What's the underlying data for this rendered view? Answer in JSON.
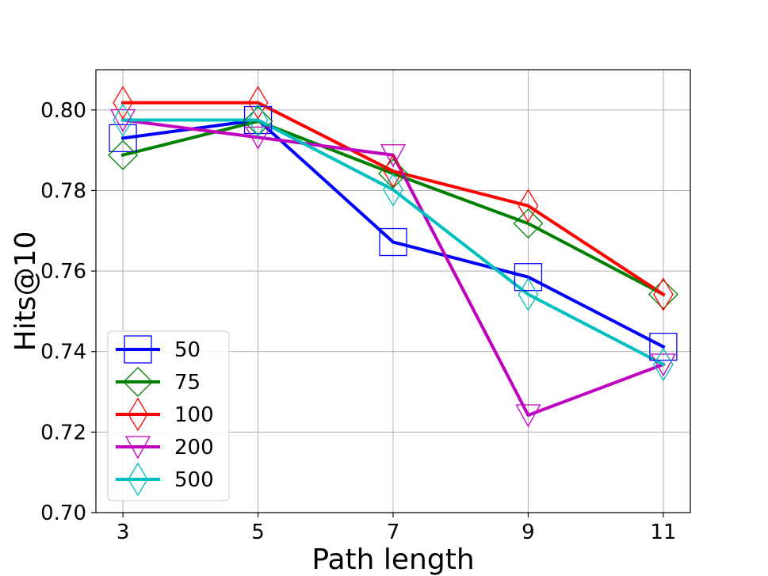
{
  "chart_data": {
    "type": "line",
    "title": "",
    "xlabel": "Path length",
    "ylabel": "Hits@10",
    "x": [
      3,
      5,
      7,
      9,
      11
    ],
    "x_ticks": [
      "3",
      "5",
      "7",
      "9",
      "11"
    ],
    "y_ticks": [
      "0.70",
      "0.72",
      "0.74",
      "0.76",
      "0.78",
      "0.80"
    ],
    "xlim": [
      2.6,
      11.4
    ],
    "ylim": [
      0.7,
      0.81
    ],
    "grid": true,
    "legend_position": "lower-left",
    "series": [
      {
        "name": "50",
        "color": "#0000ff",
        "marker": "square",
        "values": [
          0.793,
          0.7975,
          0.7672,
          0.7585,
          0.7412
        ]
      },
      {
        "name": "75",
        "color": "#008000",
        "marker": "diamond",
        "values": [
          0.7888,
          0.7972,
          0.7842,
          0.7718,
          0.7542
        ]
      },
      {
        "name": "100",
        "color": "#ff0000",
        "marker": "thin-diamond",
        "values": [
          0.8018,
          0.8018,
          0.7848,
          0.7762,
          0.7542
        ]
      },
      {
        "name": "200",
        "color": "#bf00bf",
        "marker": "triangle-down",
        "values": [
          0.7975,
          0.7932,
          0.7888,
          0.7242,
          0.7368
        ]
      },
      {
        "name": "500",
        "color": "#00bfbf",
        "marker": "thin-diamond",
        "values": [
          0.7975,
          0.7975,
          0.7802,
          0.7542,
          0.7368
        ]
      }
    ]
  }
}
